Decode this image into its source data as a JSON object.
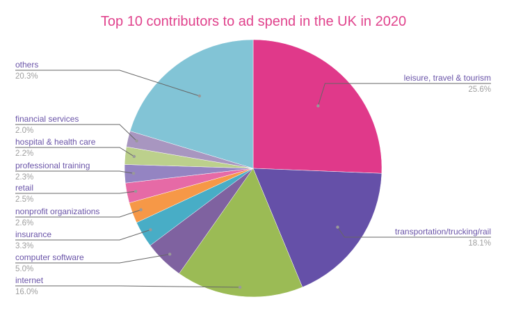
{
  "chart_data": {
    "type": "pie",
    "title": "Top 10 contributors to ad spend in the UK in 2020",
    "categories": [
      "leisure, travel & tourism",
      "transportation/trucking/rail",
      "internet",
      "computer software",
      "insurance",
      "nonprofit organizations",
      "retail",
      "professional training",
      "hospital & health care",
      "financial services",
      "others"
    ],
    "values": [
      25.6,
      18.1,
      16.0,
      5.0,
      3.3,
      2.6,
      2.5,
      2.3,
      2.2,
      2.0,
      20.3
    ],
    "labels": [
      "25.6%",
      "18.1%",
      "16.0%",
      "5.0%",
      "3.3%",
      "2.6%",
      "2.5%",
      "2.3%",
      "2.2%",
      "2.0%",
      "20.3%"
    ],
    "colors": [
      "#e0398a",
      "#6550a8",
      "#9bbb55",
      "#7f62a0",
      "#48adc6",
      "#f69847",
      "#e66aa6",
      "#9484c2",
      "#bcd08c",
      "#a896c0",
      "#82c4d6"
    ],
    "legend_position": "labels-outside"
  }
}
